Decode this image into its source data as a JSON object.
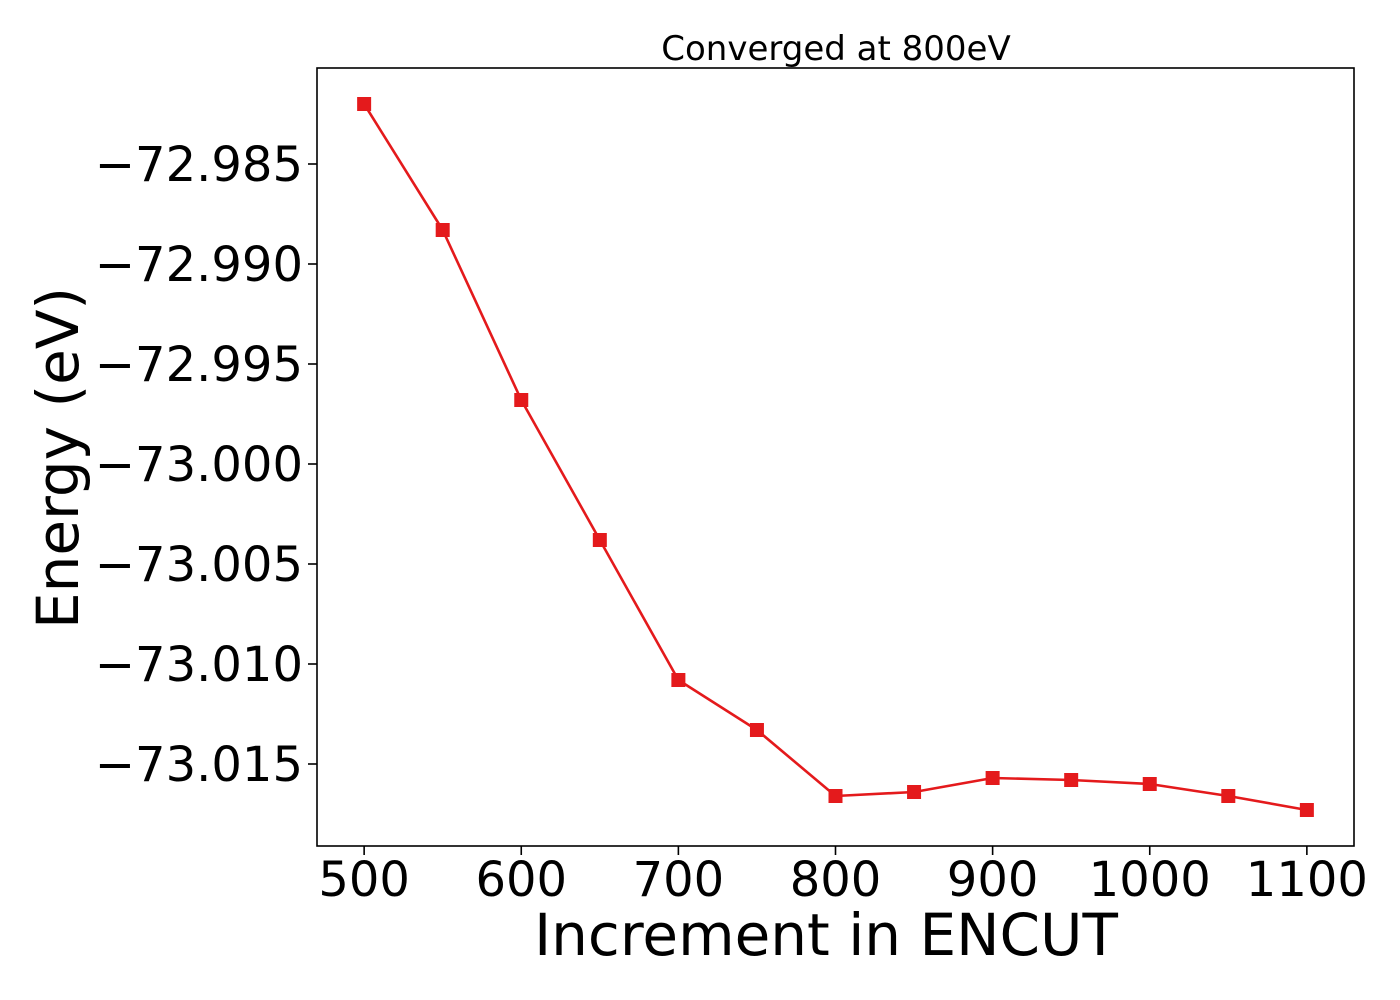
{
  "chart_data": {
    "type": "line",
    "title": "Converged at 800eV",
    "xlabel": "Increment in ENCUT",
    "ylabel": "Energy (eV)",
    "x": [
      500,
      550,
      600,
      650,
      700,
      750,
      800,
      850,
      900,
      950,
      1000,
      1050,
      1100
    ],
    "series": [
      {
        "values": [
          -72.982,
          -72.9883,
          -72.9968,
          -73.0038,
          -73.0108,
          -73.0133,
          -73.0166,
          -73.0164,
          -73.0157,
          -73.0158,
          -73.016,
          -73.0166,
          -73.0173
        ],
        "color": "#e41a1c",
        "marker": "square"
      }
    ],
    "xlim": [
      470,
      1130
    ],
    "ylim": [
      -73.0191,
      -72.9802
    ],
    "xticks": [
      500,
      600,
      700,
      800,
      900,
      1000,
      1100
    ],
    "xtick_labels": [
      "500",
      "600",
      "700",
      "800",
      "900",
      "1000",
      "1100"
    ],
    "yticks": [
      -72.985,
      -72.99,
      -72.995,
      -73.0,
      -73.005,
      -73.01,
      -73.015
    ],
    "ytick_labels": [
      "−72.985",
      "−72.990",
      "−72.995",
      "−73.000",
      "−73.005",
      "−73.010",
      "−73.015"
    ],
    "grid": false,
    "legend": "none"
  }
}
